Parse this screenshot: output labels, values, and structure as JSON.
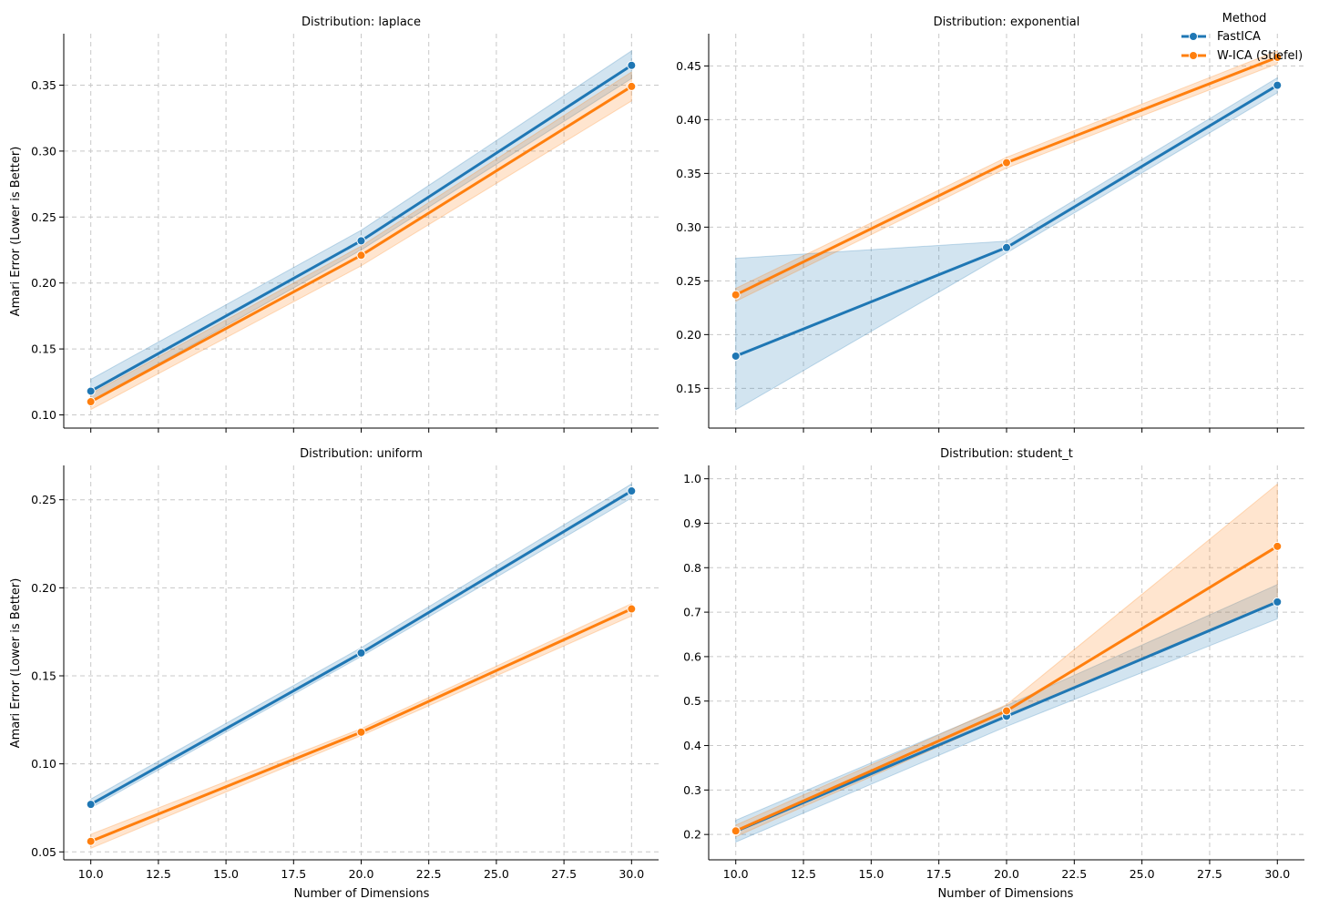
{
  "figure": {
    "x_label": "Number of Dimensions",
    "y_label": "Amari Error (Lower is Better)",
    "legend": {
      "title": "Method",
      "placement": "top-right",
      "entries": [
        "FastICA",
        "W-ICA (Stiefel)"
      ]
    },
    "colors": {
      "FastICA": "#1f77b4",
      "W-ICA (Stiefel)": "#ff7f0e",
      "grid": "#c8c8c8"
    }
  },
  "chart_data": [
    {
      "type": "line",
      "title": "Distribution: laplace",
      "xlabel": "",
      "ylabel": "Amari Error (Lower is Better)",
      "x": [
        10,
        20,
        30
      ],
      "xlim": [
        9.0,
        31.0
      ],
      "xticks": [
        "10.0",
        "12.5",
        "15.0",
        "17.5",
        "20.0",
        "22.5",
        "25.0",
        "27.5",
        "30.0"
      ],
      "show_xtick_labels": false,
      "ylim": [
        0.09,
        0.389
      ],
      "yticks": [
        "0.10",
        "0.15",
        "0.20",
        "0.25",
        "0.30",
        "0.35"
      ],
      "grid": true,
      "series": [
        {
          "name": "FastICA",
          "values": [
            0.118,
            0.232,
            0.365
          ],
          "lower": [
            0.11,
            0.225,
            0.355
          ],
          "upper": [
            0.127,
            0.24,
            0.376
          ]
        },
        {
          "name": "W-ICA (Stiefel)",
          "values": [
            0.11,
            0.221,
            0.349
          ],
          "lower": [
            0.104,
            0.213,
            0.338
          ],
          "upper": [
            0.116,
            0.228,
            0.36
          ]
        }
      ]
    },
    {
      "type": "line",
      "title": "Distribution: exponential",
      "xlabel": "",
      "ylabel": "",
      "x": [
        10,
        20,
        30
      ],
      "xlim": [
        9.0,
        31.0
      ],
      "xticks": [
        "10.0",
        "12.5",
        "15.0",
        "17.5",
        "20.0",
        "22.5",
        "25.0",
        "27.5",
        "30.0"
      ],
      "show_xtick_labels": false,
      "ylim": [
        0.113,
        0.48
      ],
      "yticks": [
        "0.15",
        "0.20",
        "0.25",
        "0.30",
        "0.35",
        "0.40",
        "0.45"
      ],
      "grid": true,
      "series": [
        {
          "name": "FastICA",
          "values": [
            0.18,
            0.281,
            0.432
          ],
          "lower": [
            0.13,
            0.276,
            0.425
          ],
          "upper": [
            0.271,
            0.287,
            0.439
          ]
        },
        {
          "name": "W-ICA (Stiefel)",
          "values": [
            0.237,
            0.36,
            0.458
          ],
          "lower": [
            0.231,
            0.355,
            0.452
          ],
          "upper": [
            0.243,
            0.365,
            0.464
          ]
        }
      ]
    },
    {
      "type": "line",
      "title": "Distribution: uniform",
      "xlabel": "Number of Dimensions",
      "ylabel": "Amari Error (Lower is Better)",
      "x": [
        10,
        20,
        30
      ],
      "xlim": [
        9.0,
        31.0
      ],
      "xticks": [
        "10.0",
        "12.5",
        "15.0",
        "17.5",
        "20.0",
        "22.5",
        "25.0",
        "27.5",
        "30.0"
      ],
      "show_xtick_labels": true,
      "ylim": [
        0.0455,
        0.2695
      ],
      "yticks": [
        "0.05",
        "0.10",
        "0.15",
        "0.20",
        "0.25"
      ],
      "grid": true,
      "series": [
        {
          "name": "FastICA",
          "values": [
            0.077,
            0.163,
            0.255
          ],
          "lower": [
            0.075,
            0.161,
            0.251
          ],
          "upper": [
            0.08,
            0.166,
            0.259
          ]
        },
        {
          "name": "W-ICA (Stiefel)",
          "values": [
            0.056,
            0.118,
            0.188
          ],
          "lower": [
            0.052,
            0.116,
            0.184
          ],
          "upper": [
            0.06,
            0.12,
            0.191
          ]
        }
      ]
    },
    {
      "type": "line",
      "title": "Distribution: student_t",
      "xlabel": "Number of Dimensions",
      "ylabel": "",
      "x": [
        10,
        20,
        30
      ],
      "xlim": [
        9.0,
        31.0
      ],
      "xticks": [
        "10.0",
        "12.5",
        "15.0",
        "17.5",
        "20.0",
        "22.5",
        "25.0",
        "27.5",
        "30.0"
      ],
      "show_xtick_labels": true,
      "ylim": [
        0.143,
        1.03
      ],
      "yticks": [
        "0.2",
        "0.3",
        "0.4",
        "0.5",
        "0.6",
        "0.7",
        "0.8",
        "0.9",
        "1.0"
      ],
      "grid": true,
      "series": [
        {
          "name": "FastICA",
          "values": [
            0.207,
            0.466,
            0.723
          ],
          "lower": [
            0.183,
            0.443,
            0.685
          ],
          "upper": [
            0.232,
            0.49,
            0.762
          ]
        },
        {
          "name": "W-ICA (Stiefel)",
          "values": [
            0.208,
            0.478,
            0.848
          ],
          "lower": [
            0.195,
            0.465,
            0.725
          ],
          "upper": [
            0.221,
            0.492,
            0.988
          ]
        }
      ]
    }
  ]
}
